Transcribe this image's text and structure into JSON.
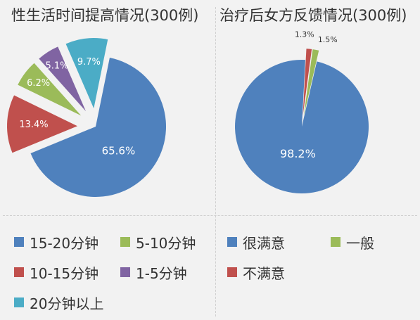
{
  "chart_data": [
    {
      "type": "pie",
      "title": "性生活时间提高情况(300例)",
      "slices": [
        {
          "label": "15-20分钟",
          "value": 65.6,
          "display": "65.6%",
          "color": "#4f81bd"
        },
        {
          "label": "10-15分钟",
          "value": 13.4,
          "display": "13.4%",
          "color": "#c0504d"
        },
        {
          "label": "5-10分钟",
          "value": 6.2,
          "display": "6.2%",
          "color": "#9bbb59"
        },
        {
          "label": "1-5分钟",
          "value": 5.1,
          "display": "5.1%",
          "color": "#8064a2"
        },
        {
          "label": "20分钟以上",
          "value": 9.7,
          "display": "9.7%",
          "color": "#4bacc6"
        }
      ],
      "legend_order": [
        0,
        2,
        1,
        3,
        4
      ],
      "legend_position": "bottom"
    },
    {
      "type": "pie",
      "title": "治疗后女方反馈情况(300例)",
      "slices": [
        {
          "label": "很满意",
          "value": 98.2,
          "display": "98.2%",
          "color": "#4f81bd"
        },
        {
          "label": "不满意",
          "value": 1.3,
          "display": "1.3%",
          "color": "#c0504d"
        },
        {
          "label": "一般",
          "value": 1.5,
          "display": "1.5%",
          "color": "#9bbb59"
        }
      ],
      "legend_order": [
        0,
        2,
        1
      ],
      "legend_position": "bottom"
    }
  ]
}
